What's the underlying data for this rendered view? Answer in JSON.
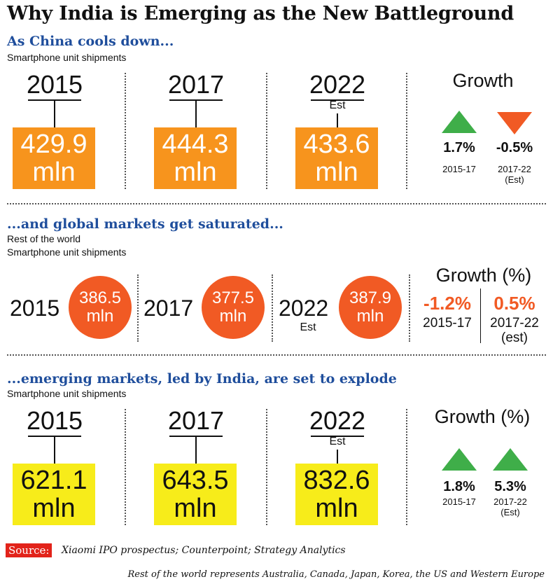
{
  "title": "Why India is Emerging as the New Battleground",
  "chart_data": [
    {
      "type": "bar",
      "heading": "As China cools down...",
      "subtitle": "Smartphone unit shipments",
      "categories": [
        "2015",
        "2017",
        "2022"
      ],
      "category_notes": [
        "",
        "",
        "Est"
      ],
      "values": [
        429.9,
        444.3,
        433.6
      ],
      "unit": "mln",
      "labels": [
        "429.9",
        "444.3",
        "433.6"
      ],
      "color": "#f7941d",
      "growth": {
        "title": "Growth",
        "items": [
          {
            "value": "1.7%",
            "period": "2015-17",
            "note": "",
            "direction": "up",
            "color": "#3fae49"
          },
          {
            "value": "-0.5%",
            "period": "2017-22",
            "note": "(Est)",
            "direction": "down",
            "color": "#f15a24"
          }
        ]
      }
    },
    {
      "type": "bar",
      "heading": "...and global markets get saturated...",
      "subtitle": "Rest of the world",
      "subtitle2": "Smartphone unit shipments",
      "categories": [
        "2015",
        "2017",
        "2022"
      ],
      "category_notes": [
        "",
        "",
        "Est"
      ],
      "values": [
        386.5,
        377.5,
        387.9
      ],
      "unit": "mln",
      "labels": [
        "386.5",
        "377.5",
        "387.9"
      ],
      "color": "#f15a24",
      "growth": {
        "title": "Growth (%)",
        "items": [
          {
            "value": "-1.2%",
            "period": "2015-17",
            "note": ""
          },
          {
            "value": "0.5%",
            "period": "2017-22",
            "note": "(est)"
          }
        ]
      }
    },
    {
      "type": "bar",
      "heading": "...emerging markets, led by India, are set to explode",
      "subtitle": "Smartphone unit shipments",
      "categories": [
        "2015",
        "2017",
        "2022"
      ],
      "category_notes": [
        "",
        "",
        "Est"
      ],
      "values": [
        621.1,
        643.5,
        832.6
      ],
      "unit": "mln",
      "labels": [
        "621.1",
        "643.5",
        "832.6"
      ],
      "color": "#f7ec1a",
      "growth": {
        "title": "Growth (%)",
        "items": [
          {
            "value": "1.8%",
            "period": "2015-17",
            "note": "",
            "direction": "up",
            "color": "#3fae49"
          },
          {
            "value": "5.3%",
            "period": "2017-22",
            "note": "(Est)",
            "direction": "up",
            "color": "#3fae49"
          }
        ]
      }
    }
  ],
  "source": {
    "label": "Source:",
    "text": "Xiaomi IPO prospectus; Counterpoint; Strategy Analytics"
  },
  "footnote": "Rest of the world represents Australia, Canada, Japan, Korea, the US and Western Europe"
}
